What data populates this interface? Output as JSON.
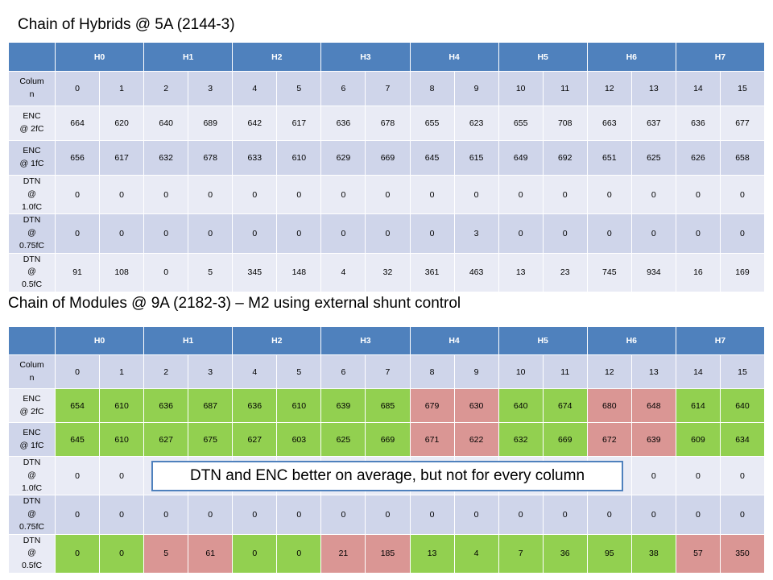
{
  "slide": {
    "title1": "Chain of Hybrids @ 5A (2144-3)",
    "table1": {
      "headers": [
        "H0",
        "H1",
        "H2",
        "H3",
        "H4",
        "H5",
        "H6",
        "H7"
      ],
      "rows": [
        {
          "label": "Column",
          "cells": [
            0,
            1,
            2,
            3,
            4,
            5,
            6,
            7,
            8,
            9,
            10,
            11,
            12,
            13,
            14,
            15
          ]
        },
        {
          "label": "ENC @ 2fC",
          "cells": [
            664,
            620,
            640,
            689,
            642,
            617,
            636,
            678,
            655,
            623,
            655,
            708,
            663,
            637,
            636,
            677
          ]
        },
        {
          "label": "ENC @ 1fC",
          "cells": [
            656,
            617,
            632,
            678,
            633,
            610,
            629,
            669,
            645,
            615,
            649,
            692,
            651,
            625,
            626,
            658
          ]
        },
        {
          "label": "DTN @ 1.0fC",
          "cells": [
            0,
            0,
            0,
            0,
            0,
            0,
            0,
            0,
            0,
            0,
            0,
            0,
            0,
            0,
            0,
            0
          ]
        },
        {
          "label": "DTN @ 0.75fC",
          "cells": [
            0,
            0,
            0,
            0,
            0,
            0,
            0,
            0,
            0,
            3,
            0,
            0,
            0,
            0,
            0,
            0
          ]
        },
        {
          "label": "DTN @ 0.5fC",
          "cells": [
            91,
            108,
            0,
            5,
            345,
            148,
            4,
            32,
            361,
            463,
            13,
            23,
            745,
            934,
            16,
            169
          ]
        }
      ]
    },
    "title2": "Chain of Modules @ 9A (2182-3) – M2 using external shunt control",
    "table2": {
      "headers": [
        "H0",
        "H1",
        "H2",
        "H3",
        "H4",
        "H5",
        "H6",
        "H7"
      ],
      "rows": [
        {
          "label": "Column",
          "cells": [
            0,
            1,
            2,
            3,
            4,
            5,
            6,
            7,
            8,
            9,
            10,
            11,
            12,
            13,
            14,
            15
          ],
          "colors": [
            "plain",
            "plain",
            "plain",
            "plain",
            "plain",
            "plain",
            "plain",
            "plain",
            "plain",
            "plain",
            "plain",
            "plain",
            "plain",
            "plain",
            "plain",
            "plain"
          ]
        },
        {
          "label": "ENC @ 2fC",
          "cells": [
            654,
            610,
            636,
            687,
            636,
            610,
            639,
            685,
            679,
            630,
            640,
            674,
            680,
            648,
            614,
            640
          ],
          "colors": [
            "green",
            "green",
            "green",
            "green",
            "green",
            "green",
            "green",
            "green",
            "red",
            "red",
            "green",
            "green",
            "red",
            "red",
            "green",
            "green"
          ]
        },
        {
          "label": "ENC @ 1fC",
          "cells": [
            645,
            610,
            627,
            675,
            627,
            603,
            625,
            669,
            671,
            622,
            632,
            669,
            672,
            639,
            609,
            634
          ],
          "colors": [
            "green",
            "green",
            "green",
            "green",
            "green",
            "green",
            "green",
            "green",
            "red",
            "red",
            "green",
            "green",
            "red",
            "red",
            "green",
            "green"
          ]
        },
        {
          "label": "DTN @ 1.0fC",
          "cells": [
            0,
            0,
            null,
            null,
            null,
            null,
            null,
            null,
            null,
            null,
            null,
            null,
            null,
            0,
            0,
            0
          ],
          "colors": [
            "plain",
            "plain",
            "plain",
            "plain",
            "plain",
            "plain",
            "plain",
            "plain",
            "plain",
            "plain",
            "plain",
            "plain",
            "plain",
            "plain",
            "plain",
            "plain"
          ]
        },
        {
          "label": "DTN @ 0.75fC",
          "cells": [
            0,
            0,
            0,
            0,
            0,
            0,
            0,
            0,
            0,
            0,
            0,
            0,
            0,
            0,
            0,
            0
          ],
          "colors": [
            "plain",
            "plain",
            "plain",
            "plain",
            "plain",
            "plain",
            "plain",
            "plain",
            "plain",
            "plain",
            "plain",
            "plain",
            "plain",
            "plain",
            "plain",
            "plain"
          ]
        },
        {
          "label": "DTN @ 0.5fC",
          "cells": [
            0,
            0,
            5,
            61,
            0,
            0,
            21,
            185,
            13,
            4,
            7,
            36,
            95,
            38,
            57,
            350
          ],
          "colors": [
            "green",
            "green",
            "red",
            "red",
            "green",
            "green",
            "red",
            "red",
            "green",
            "green",
            "green",
            "green",
            "green",
            "green",
            "red",
            "red"
          ]
        }
      ]
    },
    "callout": "DTN and ENC better on average, but not for every column"
  }
}
